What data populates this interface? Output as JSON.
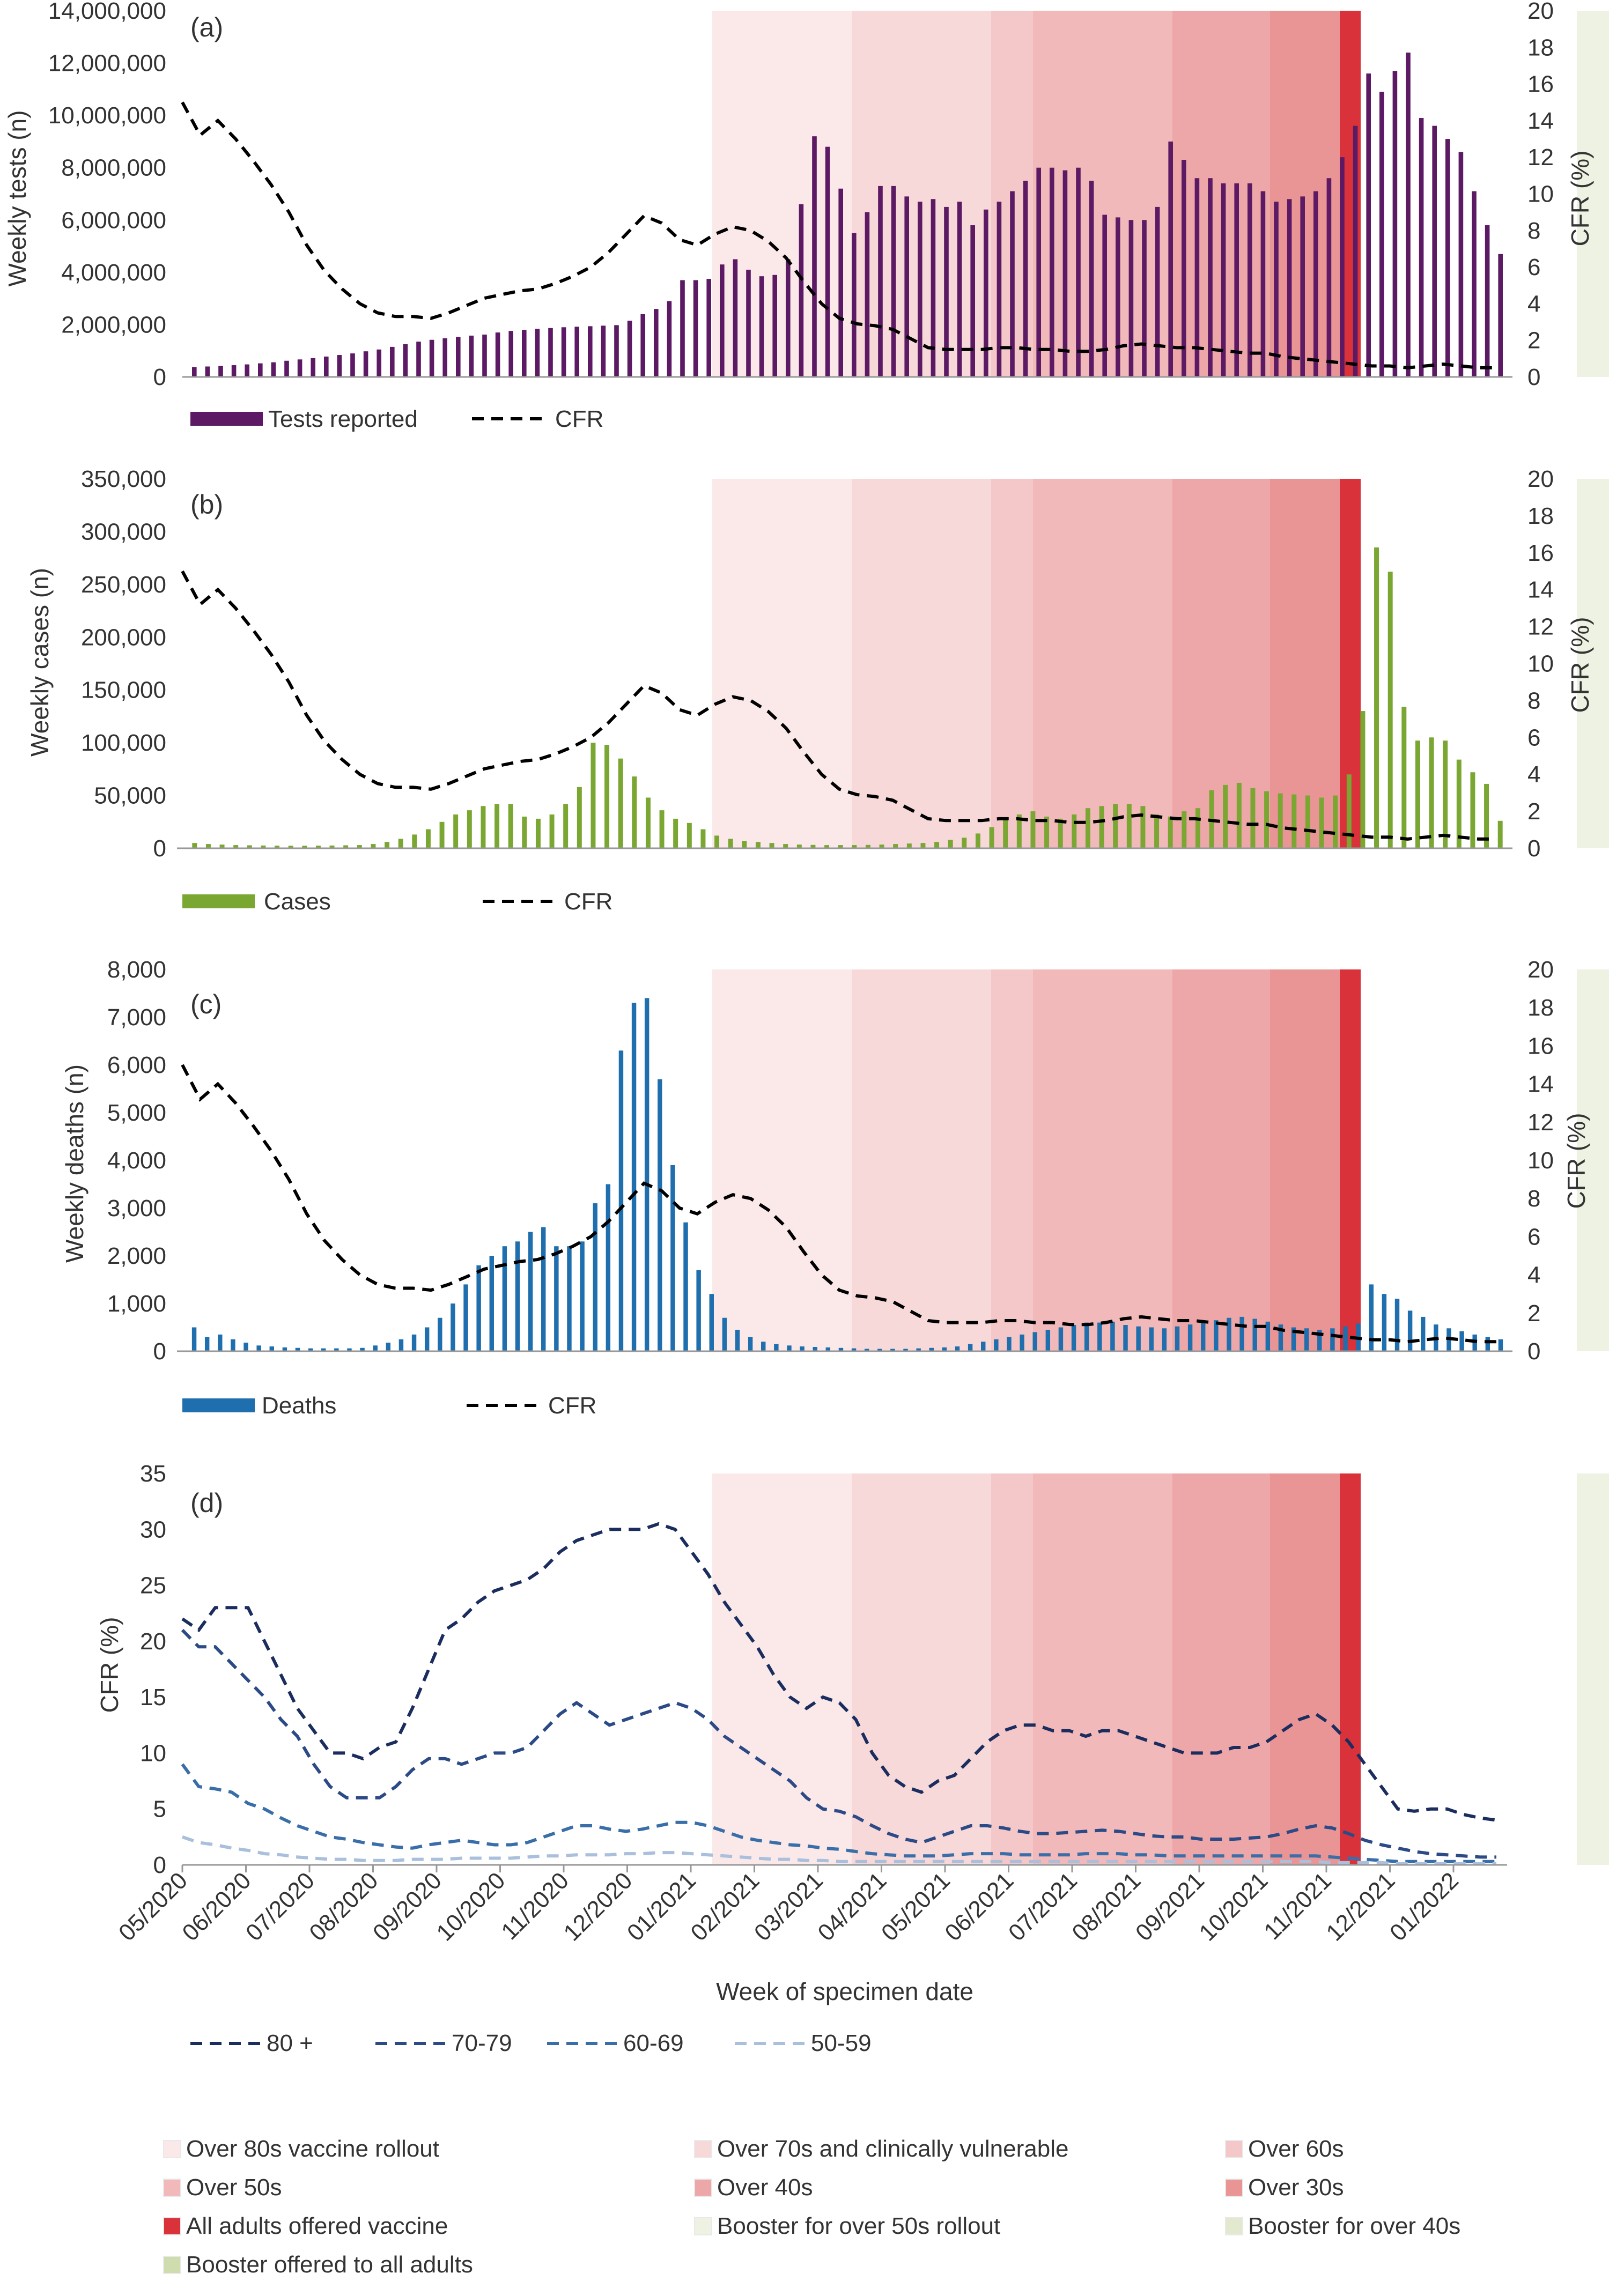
{
  "figure": {
    "x_title": "Week of specimen date",
    "x_ticks": [
      "05/2020",
      "06/2020",
      "07/2020",
      "08/2020",
      "09/2020",
      "10/2020",
      "11/2020",
      "12/2020",
      "01/2021",
      "02/2021",
      "03/2021",
      "04/2021",
      "05/2021",
      "06/2021",
      "07/2021",
      "08/2021",
      "09/2021",
      "10/2021",
      "11/2021",
      "12/2021",
      "01/2022"
    ],
    "colors": {
      "tests": "#5c1a64",
      "cases": "#7aa632",
      "deaths": "#1f6fae",
      "cfr": "#000000",
      "age80": "#1b2d5e",
      "age70": "#2c4a86",
      "age60": "#3a6ea8",
      "age50": "#a9bfdc"
    },
    "shading_legend": [
      {
        "label": "Over 80s vaccine rollout",
        "color": "#fbe9ea"
      },
      {
        "label": "Over 70s and clinically vulnerable",
        "color": "#f8d9da"
      },
      {
        "label": "Over 60s",
        "color": "#f4c8c9"
      },
      {
        "label": "Over 50s",
        "color": "#f2b9ba"
      },
      {
        "label": "Over 40s",
        "color": "#eda7a8"
      },
      {
        "label": "Over 30s",
        "color": "#e99495"
      },
      {
        "label": "All adults offered vaccine",
        "color": "#d9323a"
      },
      {
        "label": "Booster for over 50s rollout",
        "color": "#eef2e3"
      },
      {
        "label": "Booster for over 40s",
        "color": "#e2e9cf"
      },
      {
        "label": "Booster offered to all adults",
        "color": "#cfdcae"
      }
    ],
    "shading_periods": [
      {
        "start": 38,
        "end": 48,
        "color": "#fbe9ea"
      },
      {
        "start": 48,
        "end": 58,
        "color": "#f8d9da"
      },
      {
        "start": 58,
        "end": 61,
        "color": "#f4c8c9"
      },
      {
        "start": 61,
        "end": 71,
        "color": "#f2b9ba"
      },
      {
        "start": 71,
        "end": 78,
        "color": "#eda7a8"
      },
      {
        "start": 78,
        "end": 83,
        "color": "#e99495"
      },
      {
        "start": 83,
        "end": 84.5,
        "color": "#d9323a"
      },
      {
        "start": 100,
        "end": 115,
        "color": "#eef2e3"
      },
      {
        "start": 115,
        "end": 120,
        "color": "#e2e9cf"
      },
      {
        "start": 120,
        "end": 122,
        "color": "#cfdcae"
      }
    ]
  },
  "chart_data": [
    {
      "type": "bar",
      "panel_label": "(a)",
      "title": "",
      "ylabel": "Weekly tests (n)",
      "y2label": "CFR (%)",
      "ylim": [
        0,
        14000000
      ],
      "y_ticks": [
        "0",
        "2,000,000",
        "4,000,000",
        "6,000,000",
        "8,000,000",
        "10,000,000",
        "12,000,000",
        "14,000,000"
      ],
      "y2lim": [
        0,
        20
      ],
      "y2_ticks": [
        "0",
        "2",
        "4",
        "6",
        "8",
        "10",
        "12",
        "14",
        "16",
        "18",
        "20"
      ],
      "legend": {
        "bar": "Tests reported",
        "line": "CFR"
      },
      "values": [
        380000,
        400000,
        420000,
        450000,
        480000,
        520000,
        560000,
        620000,
        670000,
        720000,
        780000,
        840000,
        900000,
        980000,
        1050000,
        1150000,
        1250000,
        1350000,
        1420000,
        1480000,
        1530000,
        1580000,
        1620000,
        1700000,
        1760000,
        1800000,
        1840000,
        1870000,
        1900000,
        1920000,
        1940000,
        1960000,
        1980000,
        2150000,
        2400000,
        2600000,
        2900000,
        3700000,
        3700000,
        3750000,
        4300000,
        4500000,
        4100000,
        3850000,
        3900000,
        4500000,
        6600000,
        9200000,
        8800000,
        7200000,
        5500000,
        6300000,
        7300000,
        7300000,
        6900000,
        6700000,
        6800000,
        6500000,
        6700000,
        5800000,
        6400000,
        6700000,
        7100000,
        7500000,
        8000000,
        8000000,
        7900000,
        8000000,
        7500000,
        6200000,
        6100000,
        6000000,
        6000000,
        6500000,
        9000000,
        8300000,
        7600000,
        7600000,
        7400000,
        7400000,
        7400000,
        7100000,
        6700000,
        6800000,
        6900000,
        7100000,
        7600000,
        8400000,
        9600000,
        11600000,
        10900000,
        11700000,
        12400000,
        9900000,
        9600000,
        9100000,
        8600000,
        7100000,
        5800000,
        4700000
      ],
      "series": [
        {
          "name": "CFR",
          "values": [
            15.0,
            13.2,
            14.0,
            13.0,
            11.8,
            10.5,
            9.0,
            7.2,
            5.8,
            4.8,
            4.0,
            3.5,
            3.3,
            3.3,
            3.2,
            3.5,
            3.9,
            4.3,
            4.5,
            4.7,
            4.8,
            5.1,
            5.5,
            6.0,
            6.8,
            7.8,
            8.8,
            8.4,
            7.5,
            7.2,
            7.8,
            8.2,
            8.0,
            7.4,
            6.5,
            5.2,
            4.0,
            3.2,
            2.9,
            2.8,
            2.6,
            2.1,
            1.6,
            1.5,
            1.5,
            1.5,
            1.6,
            1.6,
            1.5,
            1.5,
            1.4,
            1.4,
            1.5,
            1.7,
            1.8,
            1.7,
            1.6,
            1.6,
            1.5,
            1.4,
            1.3,
            1.3,
            1.1,
            1.0,
            0.9,
            0.8,
            0.7,
            0.6,
            0.6,
            0.5,
            0.6,
            0.7,
            0.6,
            0.5,
            0.5
          ]
        }
      ]
    },
    {
      "type": "bar",
      "panel_label": "(b)",
      "title": "",
      "ylabel": "Weekly cases (n)",
      "y2label": "CFR (%)",
      "ylim": [
        0,
        350000
      ],
      "y_ticks": [
        "0",
        "50,000",
        "100,000",
        "150,000",
        "200,000",
        "250,000",
        "300,000",
        "350,000"
      ],
      "y2lim": [
        0,
        20
      ],
      "y2_ticks": [
        "0",
        "2",
        "4",
        "6",
        "8",
        "10",
        "12",
        "14",
        "16",
        "18",
        "20"
      ],
      "legend": {
        "bar": "Cases",
        "line": "CFR"
      },
      "values": [
        5000,
        4000,
        3500,
        3000,
        2800,
        2600,
        2500,
        2400,
        2400,
        2500,
        2600,
        2800,
        3000,
        4000,
        6000,
        9000,
        13000,
        18000,
        25000,
        32000,
        36000,
        40000,
        42000,
        42000,
        30000,
        28000,
        32000,
        42000,
        58000,
        100000,
        98000,
        85000,
        68000,
        48000,
        36000,
        28000,
        24000,
        18000,
        12000,
        9000,
        7000,
        6000,
        5000,
        4000,
        3500,
        3200,
        3000,
        3000,
        3000,
        3200,
        3500,
        4000,
        4500,
        5000,
        6000,
        8000,
        10000,
        14000,
        20000,
        28000,
        32000,
        35000,
        30000,
        28000,
        32000,
        38000,
        40000,
        42000,
        42000,
        40000,
        32000,
        30000,
        35000,
        38000,
        55000,
        60000,
        62000,
        57000,
        54000,
        52000,
        51000,
        50000,
        48000,
        50000,
        70000,
        130000,
        285000,
        262000,
        134000,
        102000,
        105000,
        102000,
        84000,
        72000,
        61000,
        26000
      ],
      "series": [
        {
          "name": "CFR",
          "values": [
            15.0,
            13.2,
            14.0,
            13.0,
            11.8,
            10.5,
            9.0,
            7.2,
            5.8,
            4.8,
            4.0,
            3.5,
            3.3,
            3.3,
            3.2,
            3.5,
            3.9,
            4.3,
            4.5,
            4.7,
            4.8,
            5.1,
            5.5,
            6.0,
            6.8,
            7.8,
            8.8,
            8.4,
            7.5,
            7.2,
            7.8,
            8.2,
            8.0,
            7.4,
            6.5,
            5.2,
            4.0,
            3.2,
            2.9,
            2.8,
            2.6,
            2.1,
            1.6,
            1.5,
            1.5,
            1.5,
            1.6,
            1.6,
            1.5,
            1.5,
            1.4,
            1.4,
            1.5,
            1.7,
            1.8,
            1.7,
            1.6,
            1.6,
            1.5,
            1.4,
            1.3,
            1.3,
            1.1,
            1.0,
            0.9,
            0.8,
            0.7,
            0.6,
            0.6,
            0.5,
            0.6,
            0.7,
            0.6,
            0.5,
            0.5
          ]
        }
      ]
    },
    {
      "type": "bar",
      "panel_label": "(c)",
      "title": "",
      "ylabel": "Weekly deaths (n)",
      "y2label": "CFR (%)",
      "ylim": [
        0,
        8000
      ],
      "y_ticks": [
        "0",
        "1,000",
        "2,000",
        "3,000",
        "4,000",
        "5,000",
        "6,000",
        "7,000",
        "8,000"
      ],
      "y2lim": [
        0,
        20
      ],
      "y2_ticks": [
        "0",
        "2",
        "4",
        "6",
        "8",
        "10",
        "12",
        "14",
        "16",
        "18",
        "20"
      ],
      "legend": {
        "bar": "Deaths",
        "line": "CFR"
      },
      "values": [
        500,
        300,
        350,
        250,
        180,
        120,
        100,
        80,
        70,
        60,
        60,
        60,
        60,
        70,
        120,
        180,
        250,
        350,
        500,
        700,
        1000,
        1400,
        1800,
        2000,
        2200,
        2300,
        2500,
        2600,
        2200,
        2200,
        2300,
        3100,
        3500,
        6300,
        7300,
        7400,
        5700,
        3900,
        2700,
        1700,
        1200,
        700,
        450,
        300,
        200,
        150,
        120,
        100,
        90,
        80,
        70,
        60,
        50,
        50,
        50,
        50,
        60,
        70,
        80,
        100,
        150,
        200,
        250,
        300,
        350,
        400,
        450,
        500,
        550,
        600,
        600,
        620,
        550,
        520,
        500,
        480,
        520,
        560,
        600,
        650,
        700,
        720,
        680,
        620,
        560,
        500,
        480,
        450,
        480,
        520,
        580,
        1400,
        1200,
        1100,
        850,
        720,
        560,
        480,
        420,
        350,
        300,
        250
      ],
      "series": [
        {
          "name": "CFR",
          "values": [
            15.0,
            13.2,
            14.0,
            13.0,
            11.8,
            10.5,
            9.0,
            7.2,
            5.8,
            4.8,
            4.0,
            3.5,
            3.3,
            3.3,
            3.2,
            3.5,
            3.9,
            4.3,
            4.5,
            4.7,
            4.8,
            5.1,
            5.5,
            6.0,
            6.8,
            7.8,
            8.8,
            8.4,
            7.5,
            7.2,
            7.8,
            8.2,
            8.0,
            7.4,
            6.5,
            5.2,
            4.0,
            3.2,
            2.9,
            2.8,
            2.6,
            2.1,
            1.6,
            1.5,
            1.5,
            1.5,
            1.6,
            1.6,
            1.5,
            1.5,
            1.4,
            1.4,
            1.5,
            1.7,
            1.8,
            1.7,
            1.6,
            1.6,
            1.5,
            1.4,
            1.3,
            1.3,
            1.1,
            1.0,
            0.9,
            0.8,
            0.7,
            0.6,
            0.6,
            0.5,
            0.6,
            0.7,
            0.6,
            0.5,
            0.5
          ]
        }
      ]
    },
    {
      "type": "line",
      "panel_label": "(d)",
      "title": "",
      "ylabel": "CFR (%)",
      "xlabel": "Week of specimen date",
      "ylim": [
        0,
        35
      ],
      "y_ticks": [
        "0",
        "5",
        "10",
        "15",
        "20",
        "25",
        "30",
        "35"
      ],
      "series": [
        {
          "name": "80 +",
          "values": [
            22.0,
            21.0,
            23.0,
            23.0,
            23.0,
            20.0,
            17.0,
            14.0,
            12.0,
            10.0,
            10.0,
            9.5,
            10.5,
            11.0,
            14.0,
            17.5,
            21.0,
            22.0,
            23.5,
            24.5,
            25.0,
            25.5,
            26.5,
            28.0,
            29.0,
            29.5,
            30.0,
            30.0,
            30.0,
            30.5,
            30.0,
            28.0,
            26.0,
            23.5,
            21.5,
            19.5,
            17.0,
            15.0,
            14.0,
            15.0,
            14.5,
            13.0,
            10.0,
            8.0,
            7.0,
            6.5,
            7.5,
            8.0,
            9.5,
            11.0,
            12.0,
            12.5,
            12.5,
            12.0,
            12.0,
            11.5,
            12.0,
            12.0,
            11.5,
            11.0,
            10.5,
            10.0,
            10.0,
            10.0,
            10.5,
            10.5,
            11.0,
            12.0,
            13.0,
            13.5,
            12.5,
            11.0,
            9.0,
            7.0,
            5.0,
            4.8,
            5.0,
            5.0,
            4.5,
            4.2,
            4.0
          ]
        },
        {
          "name": "70-79",
          "values": [
            21.0,
            19.5,
            19.5,
            18.0,
            16.5,
            15.0,
            13.0,
            11.5,
            9.0,
            7.0,
            6.0,
            6.0,
            6.0,
            7.0,
            8.5,
            9.5,
            9.5,
            9.0,
            9.5,
            10.0,
            10.0,
            10.5,
            12.0,
            13.5,
            14.5,
            13.5,
            12.5,
            13.0,
            13.5,
            14.0,
            14.5,
            14.0,
            13.0,
            11.5,
            10.5,
            9.5,
            8.5,
            7.5,
            6.0,
            5.0,
            4.8,
            4.3,
            3.5,
            2.8,
            2.3,
            2.0,
            2.5,
            3.0,
            3.5,
            3.5,
            3.3,
            3.0,
            2.8,
            2.8,
            2.9,
            3.0,
            3.1,
            3.0,
            2.8,
            2.6,
            2.5,
            2.5,
            2.3,
            2.3,
            2.3,
            2.4,
            2.5,
            2.8,
            3.2,
            3.5,
            3.3,
            2.8,
            2.2,
            1.8,
            1.5,
            1.2,
            1.0,
            0.9,
            0.8,
            0.7,
            0.7
          ]
        },
        {
          "name": "60-69",
          "values": [
            9.0,
            7.0,
            6.8,
            6.5,
            5.5,
            5.0,
            4.2,
            3.5,
            3.0,
            2.5,
            2.3,
            2.0,
            1.8,
            1.6,
            1.5,
            1.8,
            2.0,
            2.2,
            2.0,
            1.8,
            1.8,
            2.0,
            2.5,
            3.0,
            3.5,
            3.5,
            3.2,
            3.0,
            3.2,
            3.5,
            3.8,
            3.8,
            3.5,
            3.0,
            2.5,
            2.2,
            2.0,
            1.8,
            1.7,
            1.5,
            1.4,
            1.2,
            1.0,
            0.9,
            0.8,
            0.8,
            0.8,
            0.9,
            1.0,
            1.0,
            1.0,
            0.9,
            0.9,
            0.9,
            0.9,
            1.0,
            1.0,
            1.0,
            0.9,
            0.9,
            0.8,
            0.8,
            0.8,
            0.8,
            0.8,
            0.8,
            0.8,
            0.8,
            0.8,
            0.8,
            0.7,
            0.6,
            0.5,
            0.4,
            0.3,
            0.3,
            0.3,
            0.3,
            0.3,
            0.3,
            0.3
          ]
        },
        {
          "name": "50-59",
          "values": [
            2.5,
            2.0,
            1.8,
            1.5,
            1.3,
            1.0,
            0.9,
            0.7,
            0.6,
            0.5,
            0.5,
            0.4,
            0.4,
            0.4,
            0.5,
            0.5,
            0.5,
            0.6,
            0.6,
            0.6,
            0.6,
            0.7,
            0.8,
            0.8,
            0.9,
            0.9,
            0.9,
            1.0,
            1.0,
            1.1,
            1.1,
            1.0,
            0.9,
            0.8,
            0.7,
            0.6,
            0.5,
            0.5,
            0.4,
            0.4,
            0.3,
            0.3,
            0.3,
            0.3,
            0.3,
            0.3,
            0.3,
            0.3,
            0.3,
            0.3,
            0.3,
            0.3,
            0.3,
            0.3,
            0.3,
            0.3,
            0.3,
            0.3,
            0.3,
            0.3,
            0.3,
            0.3,
            0.3,
            0.3,
            0.3,
            0.3,
            0.3,
            0.3,
            0.3,
            0.3,
            0.2,
            0.2,
            0.2,
            0.2,
            0.1,
            0.1,
            0.1,
            0.1,
            0.1,
            0.1,
            0.1
          ]
        }
      ]
    }
  ]
}
